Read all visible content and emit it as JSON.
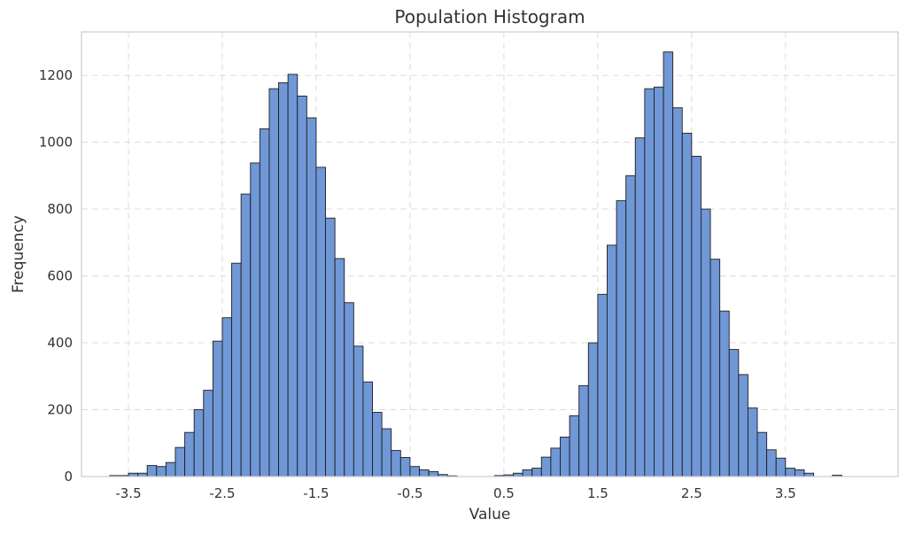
{
  "chart_data": {
    "type": "bar",
    "title": "Population Histogram",
    "xlabel": "Value",
    "ylabel": "Frequency",
    "bar_color": "#7097d6",
    "edge_color": "#1f1f1f",
    "grid": true,
    "xlim": [
      -4.0,
      4.7
    ],
    "ylim": [
      0,
      1330
    ],
    "xticks": [
      -3.5,
      -2.5,
      -1.5,
      -0.5,
      0.5,
      1.5,
      2.5,
      3.5
    ],
    "xtick_labels": [
      "-3.5",
      "-2.5",
      "-1.5",
      "-0.5",
      "0.5",
      "1.5",
      "2.5",
      "3.5"
    ],
    "yticks": [
      0,
      200,
      400,
      600,
      800,
      1000,
      1200
    ],
    "ytick_labels": [
      "0",
      "200",
      "400",
      "600",
      "800",
      "1000",
      "1200"
    ],
    "bin_start": -3.8,
    "bin_width": 0.1,
    "values": [
      0,
      3,
      3,
      10,
      10,
      33,
      30,
      42,
      87,
      132,
      200,
      258,
      405,
      475,
      638,
      845,
      938,
      1040,
      1160,
      1178,
      1203,
      1138,
      1073,
      925,
      773,
      652,
      520,
      390,
      283,
      192,
      143,
      78,
      57,
      30,
      20,
      15,
      6,
      2,
      0,
      0,
      0,
      0,
      3,
      5,
      10,
      20,
      25,
      58,
      85,
      118,
      182,
      272,
      400,
      545,
      692,
      825,
      900,
      1013,
      1160,
      1165,
      1270,
      1103,
      1027,
      958,
      800,
      650,
      495,
      380,
      305,
      205,
      132,
      80,
      55,
      25,
      20,
      10,
      0,
      0,
      4
    ]
  }
}
